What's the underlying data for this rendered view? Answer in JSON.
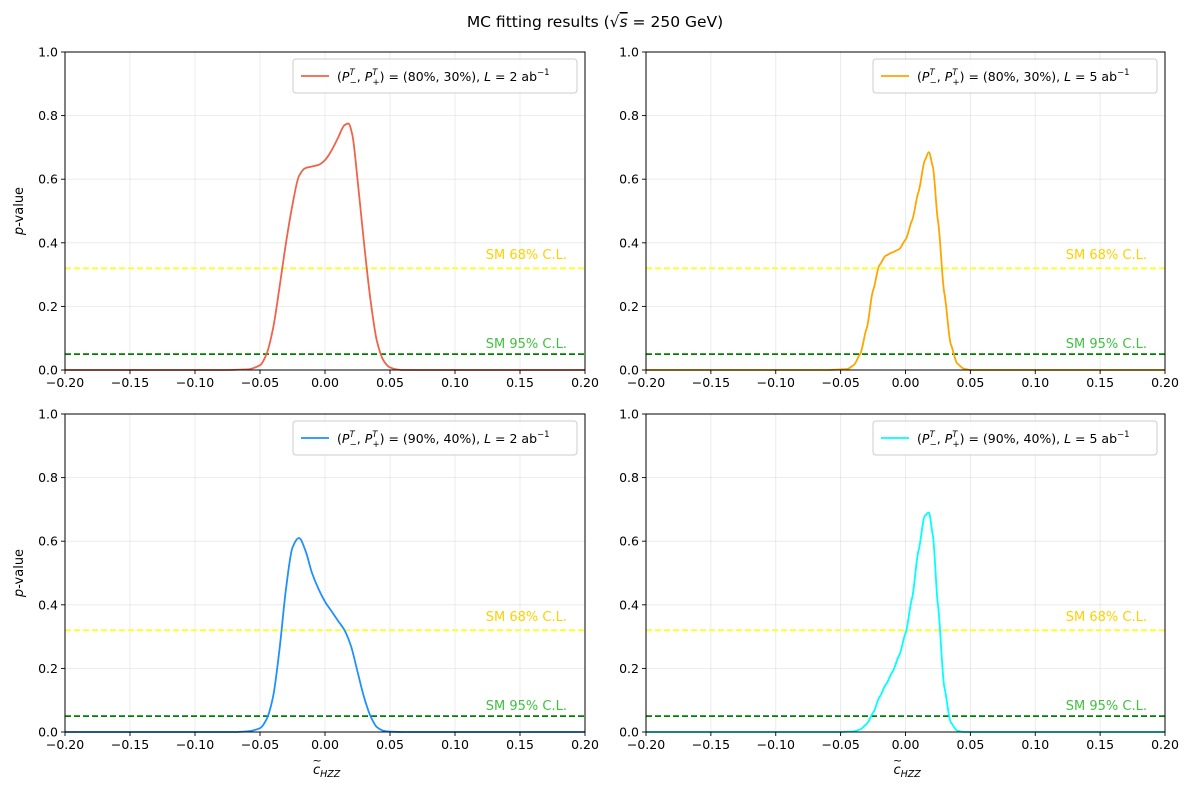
{
  "figure": {
    "title_prefix": "MC fitting results (",
    "title_sqrt": "√",
    "title_s": "s",
    "title_suffix": " = 250 GeV)"
  },
  "reference_lines": {
    "cl68": {
      "value": 0.32,
      "label": "SM 68% C.L.",
      "line_color": "#ffff1a",
      "text_color": "#ffd000"
    },
    "cl95": {
      "value": 0.05,
      "label": "SM 95% C.L.",
      "line_color": "#008000",
      "text_color": "#40c040"
    }
  },
  "axes_common": {
    "xlim": [
      -0.2,
      0.2
    ],
    "ylim": [
      0,
      1.0
    ],
    "xticks": [
      "−0.20",
      "−0.15",
      "−0.10",
      "−0.05",
      "0.00",
      "0.05",
      "0.10",
      "0.15",
      "0.20"
    ],
    "xtick_values": [
      -0.2,
      -0.15,
      -0.1,
      -0.05,
      0.0,
      0.05,
      0.1,
      0.15,
      0.2
    ],
    "yticks": [
      "0.0",
      "0.2",
      "0.4",
      "0.6",
      "0.8",
      "1.0"
    ],
    "ytick_values": [
      0,
      0.2,
      0.4,
      0.6,
      0.8,
      1.0
    ],
    "ylabel_italic": "p",
    "ylabel_rest": "-value",
    "xlabel_main": "c",
    "xlabel_tilde": "~",
    "xlabel_sub": "HZZ"
  },
  "chart_data": [
    {
      "type": "line",
      "color": "#f0634a",
      "legend": {
        "lead": "(",
        "pm": "P",
        "sub_m": "−",
        "sup": "T",
        "sep": ", ",
        "pp": "P",
        "sub_p": "+",
        "values": ") = (80%, 30%), ",
        "L": "L",
        "eq": " = 2 ab",
        "exp": "−1"
      },
      "x": [
        -0.2,
        -0.08,
        -0.06,
        -0.05,
        -0.045,
        -0.04,
        -0.035,
        -0.03,
        -0.025,
        -0.02,
        -0.015,
        -0.01,
        -0.005,
        0.0,
        0.005,
        0.01,
        0.015,
        0.018,
        0.021,
        0.025,
        0.03,
        0.035,
        0.04,
        0.045,
        0.05,
        0.055,
        0.06,
        0.08,
        0.2
      ],
      "y": [
        0,
        0,
        0.002,
        0.015,
        0.05,
        0.13,
        0.26,
        0.4,
        0.52,
        0.61,
        0.635,
        0.64,
        0.645,
        0.66,
        0.69,
        0.73,
        0.77,
        0.775,
        0.74,
        0.6,
        0.4,
        0.22,
        0.09,
        0.03,
        0.008,
        0.002,
        0,
        0,
        0
      ]
    },
    {
      "type": "line",
      "color": "#ffa500",
      "legend": {
        "lead": "(",
        "pm": "P",
        "sub_m": "−",
        "sup": "T",
        "sep": ", ",
        "pp": "P",
        "sub_p": "+",
        "values": ") = (80%, 30%), ",
        "L": "L",
        "eq": " = 5 ab",
        "exp": "−1"
      },
      "x": [
        -0.2,
        -0.06,
        -0.045,
        -0.04,
        -0.035,
        -0.03,
        -0.025,
        -0.02,
        -0.015,
        -0.01,
        -0.005,
        0.0,
        0.005,
        0.01,
        0.015,
        0.018,
        0.021,
        0.025,
        0.03,
        0.035,
        0.04,
        0.045,
        0.05,
        0.06,
        0.2
      ],
      "y": [
        0,
        0,
        0.003,
        0.015,
        0.05,
        0.13,
        0.25,
        0.33,
        0.36,
        0.37,
        0.38,
        0.41,
        0.47,
        0.56,
        0.66,
        0.685,
        0.64,
        0.47,
        0.24,
        0.08,
        0.02,
        0.004,
        0,
        0,
        0
      ],
      "tangent_factor": 0.5
    },
    {
      "type": "line",
      "color": "#1e90ff",
      "legend": {
        "lead": "(",
        "pm": "P",
        "sub_m": "−",
        "sup": "T",
        "sep": ", ",
        "pp": "P",
        "sub_p": "+",
        "values": ") = (90%, 40%), ",
        "L": "L",
        "eq": " = 2 ab",
        "exp": "−1"
      },
      "x": [
        -0.2,
        -0.07,
        -0.06,
        -0.05,
        -0.045,
        -0.04,
        -0.035,
        -0.03,
        -0.025,
        -0.02,
        -0.015,
        -0.01,
        -0.005,
        0.0,
        0.005,
        0.01,
        0.015,
        0.02,
        0.025,
        0.03,
        0.035,
        0.04,
        0.045,
        0.05,
        0.06,
        0.2
      ],
      "y": [
        0,
        0,
        0.002,
        0.012,
        0.04,
        0.11,
        0.26,
        0.45,
        0.58,
        0.61,
        0.57,
        0.5,
        0.45,
        0.41,
        0.38,
        0.35,
        0.32,
        0.27,
        0.19,
        0.11,
        0.05,
        0.015,
        0.004,
        0.001,
        0,
        0
      ]
    },
    {
      "type": "line",
      "color": "#00ffff",
      "legend": {
        "lead": "(",
        "pm": "P",
        "sub_m": "−",
        "sup": "T",
        "sep": ", ",
        "pp": "P",
        "sub_p": "+",
        "values": ") = (90%, 40%), ",
        "L": "L",
        "eq": " = 5 ab",
        "exp": "−1"
      },
      "x": [
        -0.2,
        -0.05,
        -0.04,
        -0.035,
        -0.03,
        -0.025,
        -0.02,
        -0.015,
        -0.01,
        -0.005,
        0.0,
        0.005,
        0.01,
        0.015,
        0.018,
        0.021,
        0.025,
        0.03,
        0.035,
        0.04,
        0.045,
        0.05,
        0.06,
        0.2
      ],
      "y": [
        0,
        0,
        0.002,
        0.008,
        0.025,
        0.06,
        0.11,
        0.15,
        0.19,
        0.24,
        0.31,
        0.42,
        0.57,
        0.68,
        0.69,
        0.62,
        0.4,
        0.14,
        0.03,
        0.004,
        0,
        0,
        0,
        0
      ],
      "tangent_factor": 0.5
    }
  ]
}
